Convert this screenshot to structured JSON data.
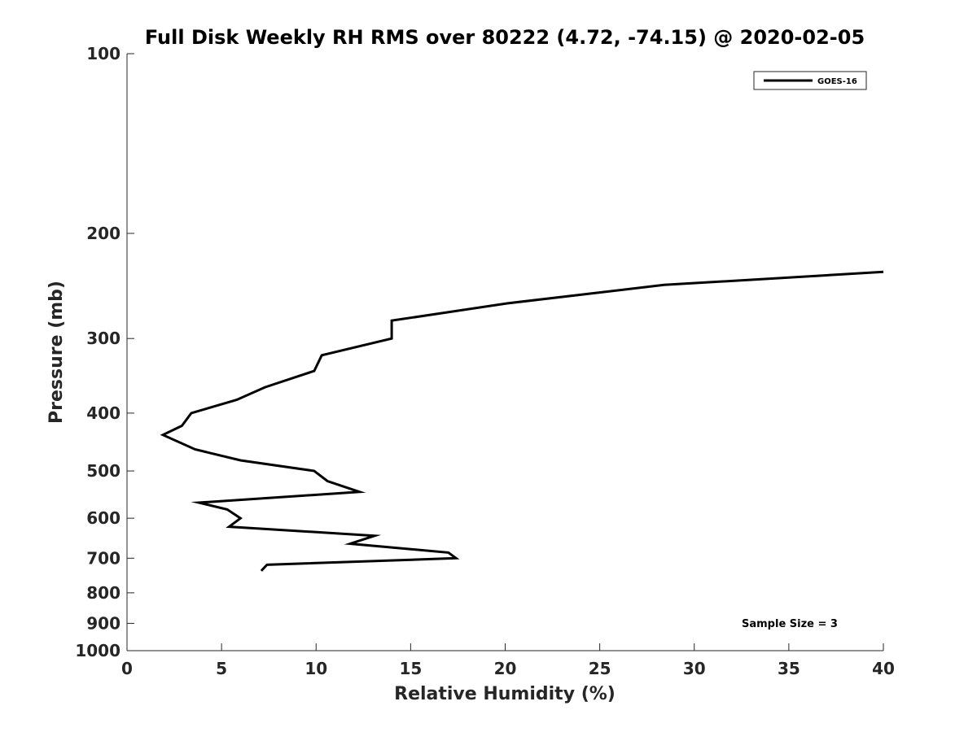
{
  "chart_data": {
    "type": "line",
    "title": "Full Disk Weekly RH RMS over 80222 (4.72, -74.15) @ 2020-02-05",
    "xlabel": "Relative Humidity (%)",
    "ylabel": "Pressure (mb)",
    "xlim": [
      0,
      40
    ],
    "ylim": [
      1000,
      100
    ],
    "yscale": "log",
    "grid": false,
    "legend_position": "top-right",
    "x_ticks": [
      0,
      5,
      10,
      15,
      20,
      25,
      30,
      35,
      40
    ],
    "y_ticks": [
      100,
      200,
      300,
      400,
      500,
      600,
      700,
      800,
      900,
      1000
    ],
    "series": [
      {
        "name": "GOES-16",
        "color": "#000000",
        "points": [
          {
            "rh": 40.0,
            "p": 232
          },
          {
            "rh": 28.4,
            "p": 244
          },
          {
            "rh": 20.1,
            "p": 262
          },
          {
            "rh": 14.0,
            "p": 280
          },
          {
            "rh": 14.0,
            "p": 300
          },
          {
            "rh": 10.3,
            "p": 320
          },
          {
            "rh": 9.9,
            "p": 340
          },
          {
            "rh": 7.3,
            "p": 362
          },
          {
            "rh": 5.8,
            "p": 380
          },
          {
            "rh": 3.4,
            "p": 400
          },
          {
            "rh": 2.9,
            "p": 420
          },
          {
            "rh": 1.9,
            "p": 435
          },
          {
            "rh": 3.6,
            "p": 460
          },
          {
            "rh": 6.0,
            "p": 480
          },
          {
            "rh": 9.9,
            "p": 500
          },
          {
            "rh": 10.6,
            "p": 520
          },
          {
            "rh": 12.3,
            "p": 542
          },
          {
            "rh": 3.8,
            "p": 565
          },
          {
            "rh": 5.3,
            "p": 580
          },
          {
            "rh": 6.0,
            "p": 600
          },
          {
            "rh": 5.4,
            "p": 620
          },
          {
            "rh": 13.1,
            "p": 642
          },
          {
            "rh": 11.8,
            "p": 662
          },
          {
            "rh": 17.0,
            "p": 685
          },
          {
            "rh": 17.4,
            "p": 700
          },
          {
            "rh": 7.4,
            "p": 718
          },
          {
            "rh": 7.1,
            "p": 735
          }
        ]
      }
    ],
    "annotation": "Sample Size = 3"
  }
}
